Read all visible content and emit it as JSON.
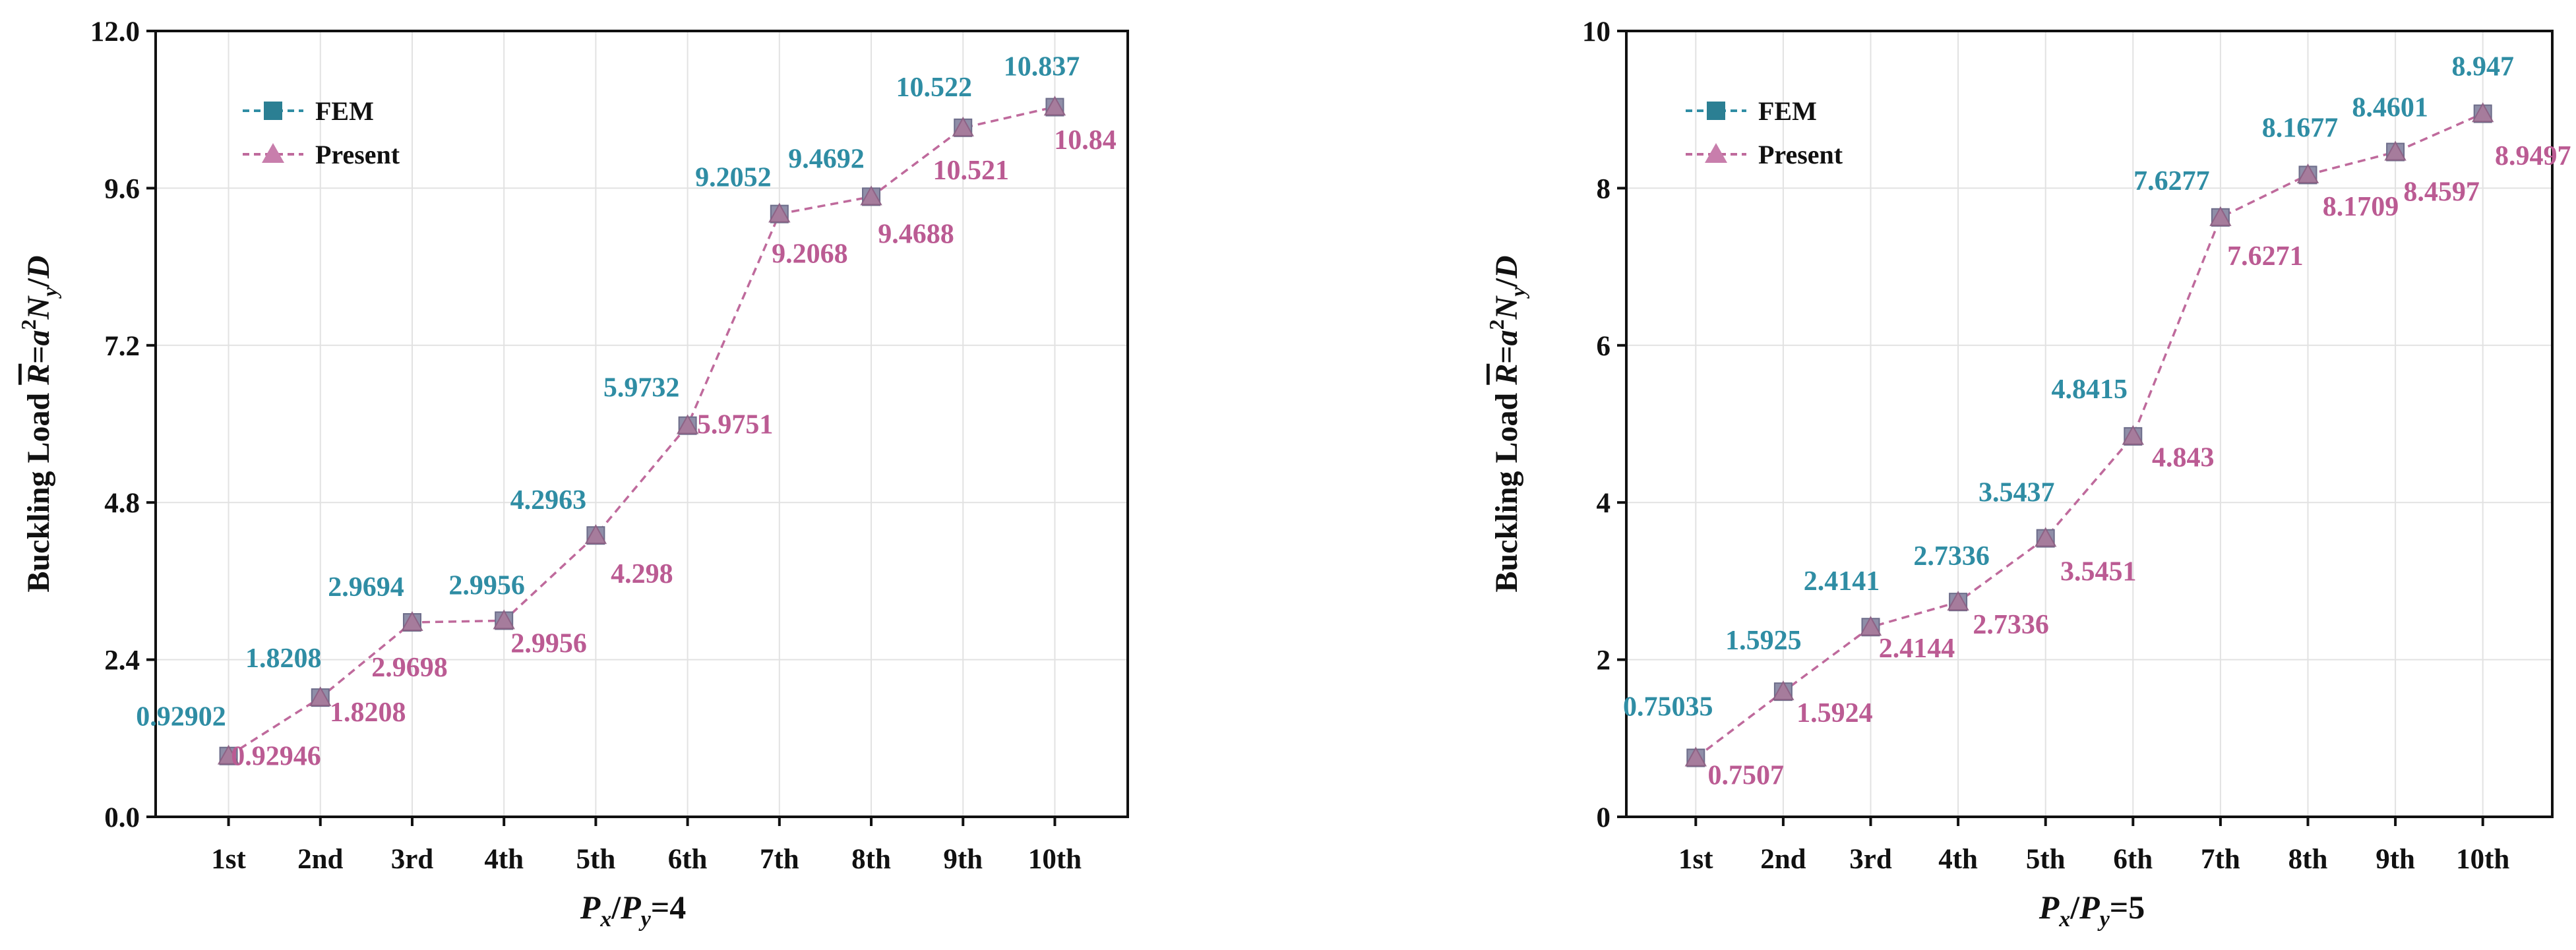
{
  "colors": {
    "fem": "#2f8da4",
    "present": "#bb5b93",
    "line": "#bf6a9c",
    "marker_fill": "#a97b9b",
    "marker_stroke": "#8d5f83",
    "grid": "#e2e2e2",
    "axis": "#111111",
    "legend_fem_marker": "#2b7f93"
  },
  "chart_data": [
    {
      "type": "line",
      "title": "",
      "xlabel_parts": [
        "P",
        "x",
        "/P",
        "y",
        "=4"
      ],
      "ylabel_parts": [
        "Buckling Load ",
        "R",
        "=a",
        "2",
        "N",
        "y",
        "/D"
      ],
      "categories": [
        "1st",
        "2nd",
        "3rd",
        "4th",
        "5th",
        "6th",
        "7th",
        "8th",
        "9th",
        "10th"
      ],
      "ylim": [
        0,
        12
      ],
      "yticks": [
        0,
        2.4,
        4.8,
        7.2,
        9.6,
        12
      ],
      "ytick_labels": [
        "0.0",
        "2.4",
        "4.8",
        "7.2",
        "9.6",
        "12.0"
      ],
      "grid": true,
      "legend": {
        "position": "top-left",
        "entries": [
          "FEM",
          "Present"
        ]
      },
      "series": [
        {
          "name": "FEM",
          "values": [
            0.92902,
            1.8208,
            2.9694,
            2.9956,
            4.2963,
            5.9732,
            9.2052,
            9.4692,
            10.522,
            10.837
          ],
          "labels": [
            "0.92902",
            "1.8208",
            "2.9694",
            "2.9956",
            "4.2963",
            "5.9732",
            "9.2052",
            "9.4692",
            "10.522",
            "10.837"
          ]
        },
        {
          "name": "Present",
          "values": [
            0.92946,
            1.8208,
            2.9698,
            2.9956,
            4.298,
            5.9751,
            9.2068,
            9.4688,
            10.521,
            10.84
          ],
          "labels": [
            "0.92946",
            "1.8208",
            "2.9698",
            "2.9956",
            "4.298",
            "5.9751",
            "9.2068",
            "9.4688",
            "10.521",
            "10.84"
          ]
        }
      ]
    },
    {
      "type": "line",
      "title": "",
      "xlabel_parts": [
        "P",
        "x",
        "/P",
        "y",
        "=5"
      ],
      "ylabel_parts": [
        "Buckling Load ",
        "R",
        "=a",
        "2",
        "N",
        "y",
        "/D"
      ],
      "categories": [
        "1st",
        "2nd",
        "3rd",
        "4th",
        "5th",
        "6th",
        "7th",
        "8th",
        "9th",
        "10th"
      ],
      "ylim": [
        0,
        10
      ],
      "yticks": [
        0,
        2,
        4,
        6,
        8,
        10
      ],
      "ytick_labels": [
        "0",
        "2",
        "4",
        "6",
        "8",
        "10"
      ],
      "grid": true,
      "legend": {
        "position": "top-left",
        "entries": [
          "FEM",
          "Present"
        ]
      },
      "series": [
        {
          "name": "FEM",
          "values": [
            0.75035,
            1.5925,
            2.4141,
            2.7336,
            3.5437,
            4.8415,
            7.6277,
            8.1677,
            8.4601,
            8.947
          ],
          "labels": [
            "0.75035",
            "1.5925",
            "2.4141",
            "2.7336",
            "3.5437",
            "4.8415",
            "7.6277",
            "8.1677",
            "8.4601",
            "8.947"
          ]
        },
        {
          "name": "Present",
          "values": [
            0.7507,
            1.5924,
            2.4144,
            2.7336,
            3.5451,
            4.843,
            7.6271,
            8.1709,
            8.4597,
            8.9497
          ],
          "labels": [
            "0.7507",
            "1.5924",
            "2.4144",
            "2.7336",
            "3.5451",
            "4.843",
            "7.6271",
            "8.1709",
            "8.4597",
            "8.9497"
          ]
        }
      ]
    }
  ]
}
